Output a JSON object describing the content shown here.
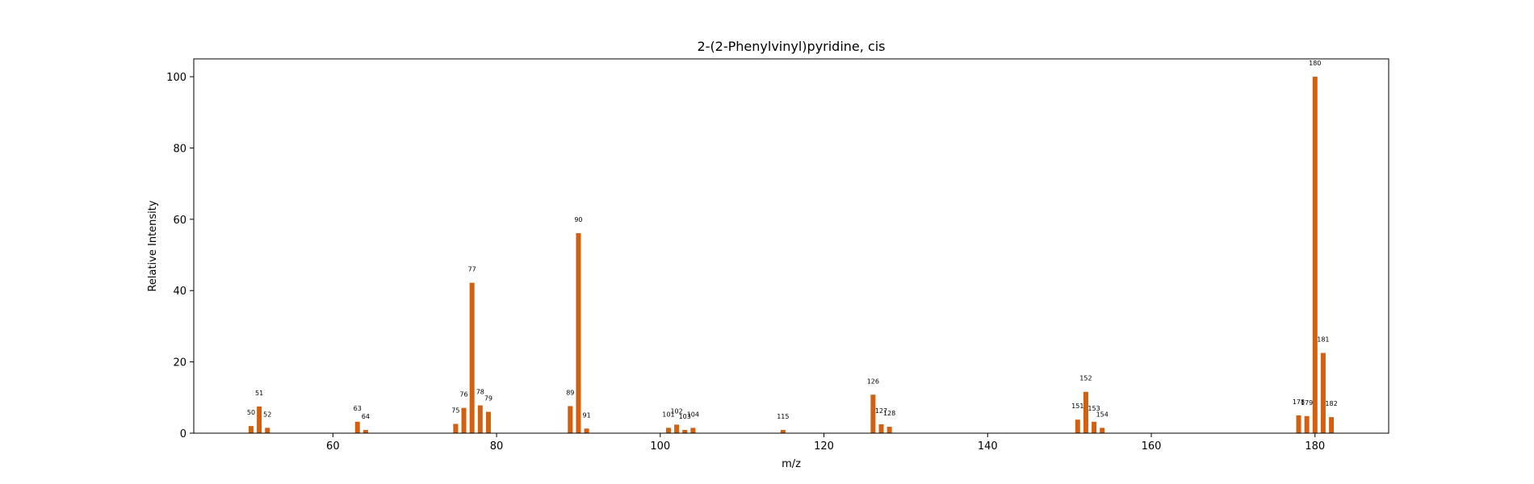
{
  "chart_data": {
    "type": "bar",
    "title": "2-(2-Phenylvinyl)pyridine, cis",
    "xlabel": "m/z",
    "ylabel": "Relative Intensity",
    "xlim": [
      43,
      189
    ],
    "ylim": [
      0,
      105
    ],
    "xticks": [
      60,
      80,
      100,
      120,
      140,
      160,
      180
    ],
    "yticks": [
      0,
      20,
      40,
      60,
      80,
      100
    ],
    "grid": false,
    "bar_color": "#d2600f",
    "peaks": [
      {
        "mz": 50,
        "intensity": 2.0
      },
      {
        "mz": 51,
        "intensity": 7.5
      },
      {
        "mz": 52,
        "intensity": 1.5
      },
      {
        "mz": 63,
        "intensity": 3.2
      },
      {
        "mz": 64,
        "intensity": 0.9
      },
      {
        "mz": 75,
        "intensity": 2.6
      },
      {
        "mz": 76,
        "intensity": 7.1
      },
      {
        "mz": 77,
        "intensity": 42.2
      },
      {
        "mz": 78,
        "intensity": 7.8
      },
      {
        "mz": 79,
        "intensity": 6.0
      },
      {
        "mz": 89,
        "intensity": 7.6
      },
      {
        "mz": 90,
        "intensity": 56.1
      },
      {
        "mz": 91,
        "intensity": 1.3
      },
      {
        "mz": 101,
        "intensity": 1.5
      },
      {
        "mz": 102,
        "intensity": 2.4
      },
      {
        "mz": 103,
        "intensity": 0.9
      },
      {
        "mz": 104,
        "intensity": 1.5
      },
      {
        "mz": 115,
        "intensity": 0.9
      },
      {
        "mz": 126,
        "intensity": 10.8
      },
      {
        "mz": 127,
        "intensity": 2.5
      },
      {
        "mz": 128,
        "intensity": 1.8
      },
      {
        "mz": 151,
        "intensity": 3.8
      },
      {
        "mz": 152,
        "intensity": 11.6
      },
      {
        "mz": 153,
        "intensity": 3.2
      },
      {
        "mz": 154,
        "intensity": 1.5
      },
      {
        "mz": 178,
        "intensity": 5.0
      },
      {
        "mz": 179,
        "intensity": 4.8
      },
      {
        "mz": 180,
        "intensity": 100.0
      },
      {
        "mz": 181,
        "intensity": 22.5
      },
      {
        "mz": 182,
        "intensity": 4.5
      }
    ]
  }
}
